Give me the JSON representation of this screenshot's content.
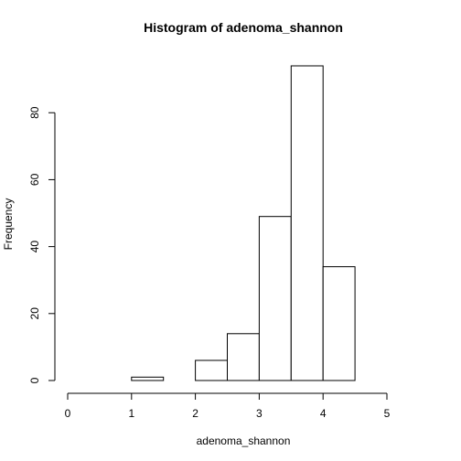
{
  "chart_data": {
    "type": "bar",
    "title": "Histogram of adenoma_shannon",
    "xlabel": "adenoma_shannon",
    "ylabel": "Frequency",
    "bins": [
      {
        "from": 1.0,
        "to": 1.5,
        "count": 1
      },
      {
        "from": 1.5,
        "to": 2.0,
        "count": 0
      },
      {
        "from": 2.0,
        "to": 2.5,
        "count": 6
      },
      {
        "from": 2.5,
        "to": 3.0,
        "count": 14
      },
      {
        "from": 3.0,
        "to": 3.5,
        "count": 49
      },
      {
        "from": 3.5,
        "to": 4.0,
        "count": 94
      },
      {
        "from": 4.0,
        "to": 4.5,
        "count": 34
      }
    ],
    "xlim": [
      0,
      5
    ],
    "ylim": [
      0,
      94
    ],
    "x_ticks": [
      "0",
      "1",
      "2",
      "3",
      "4",
      "5"
    ],
    "y_ticks": [
      "0",
      "20",
      "40",
      "60",
      "80"
    ],
    "grid": false,
    "legend": "none"
  }
}
